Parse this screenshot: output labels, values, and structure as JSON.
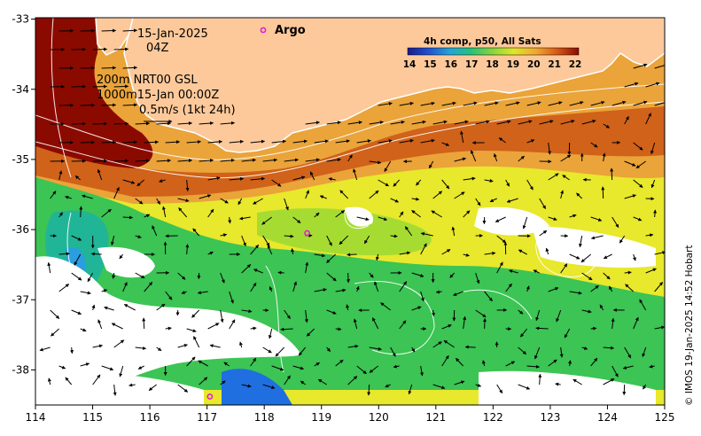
{
  "map": {
    "date": "15-Jan-2025",
    "time": "04Z",
    "argo_label": "Argo",
    "product_title": "4h comp, p50, All Sats",
    "contour_line1": "200m  NRT00 GSL",
    "contour_line2": "1000m15-Jan 00:00Z",
    "vector_scale": "0.5m/s (1kt 24h)",
    "credit": "© IMOS 19-Jan-2025 14:52 Hobart",
    "lon_ticks": [
      "114",
      "115",
      "116",
      "117",
      "118",
      "119",
      "120",
      "121",
      "122",
      "123",
      "124",
      "125"
    ],
    "lat_ticks": [
      "-33",
      "-34",
      "-35",
      "-36",
      "-37",
      "-38"
    ],
    "colorbar_ticks": [
      "14",
      "15",
      "16",
      "17",
      "18",
      "19",
      "20",
      "21",
      "22"
    ],
    "colors": {
      "land": "#fdc99a",
      "hot": "#8b0a00",
      "warm": "#d0621a",
      "orange": "#eaa43a",
      "yellow": "#e2e62a",
      "lime": "#a6dc32",
      "green": "#39c354",
      "teal": "#20b596",
      "blue": "#1f6fe0",
      "argo": "#e020d0"
    },
    "argo_floats": [
      {
        "lon": 118.75,
        "lat": -36.05
      },
      {
        "lon": 117.05,
        "lat": -38.38
      }
    ]
  }
}
